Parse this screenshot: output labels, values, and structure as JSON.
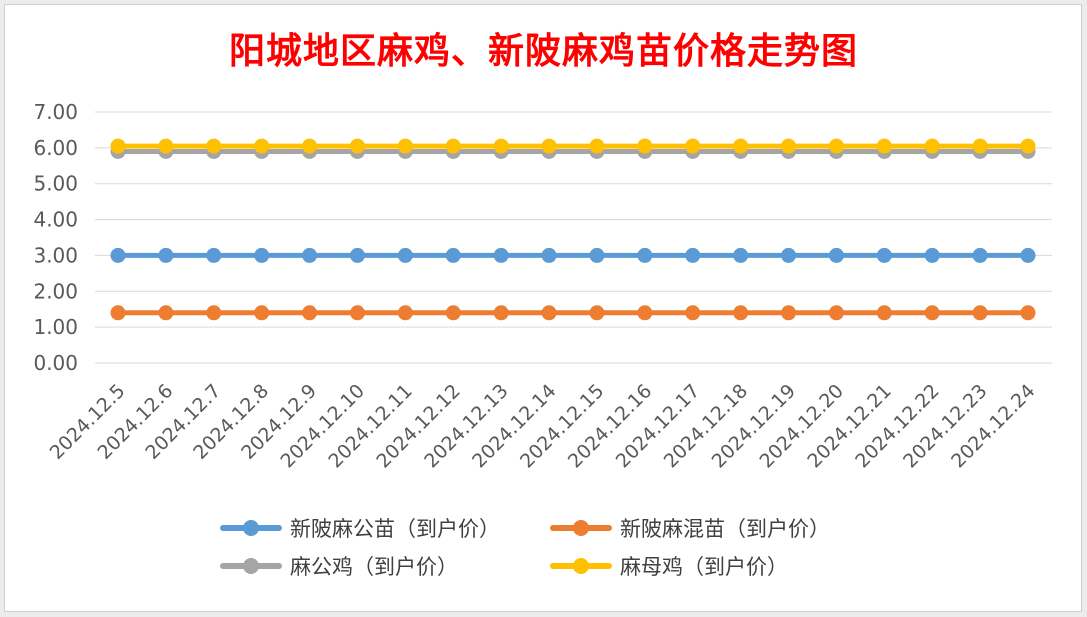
{
  "chart_data": {
    "type": "line",
    "title": "阳城地区麻鸡、新陂麻鸡苗价格走势图",
    "xlabel": "",
    "ylabel": "",
    "ylim": [
      0,
      7
    ],
    "ytick_labels": [
      "0.00",
      "1.00",
      "2.00",
      "3.00",
      "4.00",
      "5.00",
      "6.00",
      "7.00"
    ],
    "grid": true,
    "legend_position": "bottom",
    "categories": [
      "2024.12.5",
      "2024.12.6",
      "2024.12.7",
      "2024.12.8",
      "2024.12.9",
      "2024.12.10",
      "2024.12.11",
      "2024.12.12",
      "2024.12.13",
      "2024.12.14",
      "2024.12.15",
      "2024.12.16",
      "2024.12.17",
      "2024.12.18",
      "2024.12.19",
      "2024.12.20",
      "2024.12.21",
      "2024.12.22",
      "2024.12.23",
      "2024.12.24"
    ],
    "series": [
      {
        "name": "新陂麻公苗（到户价）",
        "color": "#5b9bd5",
        "values": [
          3.0,
          3.0,
          3.0,
          3.0,
          3.0,
          3.0,
          3.0,
          3.0,
          3.0,
          3.0,
          3.0,
          3.0,
          3.0,
          3.0,
          3.0,
          3.0,
          3.0,
          3.0,
          3.0,
          3.0
        ]
      },
      {
        "name": "新陂麻混苗（到户价）",
        "color": "#ed7d31",
        "values": [
          1.4,
          1.4,
          1.4,
          1.4,
          1.4,
          1.4,
          1.4,
          1.4,
          1.4,
          1.4,
          1.4,
          1.4,
          1.4,
          1.4,
          1.4,
          1.4,
          1.4,
          1.4,
          1.4,
          1.4
        ]
      },
      {
        "name": "麻公鸡（到户价）",
        "color": "#a5a5a5",
        "values": [
          5.9,
          5.9,
          5.9,
          5.9,
          5.9,
          5.9,
          5.9,
          5.9,
          5.9,
          5.9,
          5.9,
          5.9,
          5.9,
          5.9,
          5.9,
          5.9,
          5.9,
          5.9,
          5.9,
          5.9
        ]
      },
      {
        "name": "麻母鸡（到户价）",
        "color": "#ffc000",
        "values": [
          6.05,
          6.05,
          6.05,
          6.05,
          6.05,
          6.05,
          6.05,
          6.05,
          6.05,
          6.05,
          6.05,
          6.05,
          6.05,
          6.05,
          6.05,
          6.05,
          6.05,
          6.05,
          6.05,
          6.05
        ]
      }
    ]
  }
}
